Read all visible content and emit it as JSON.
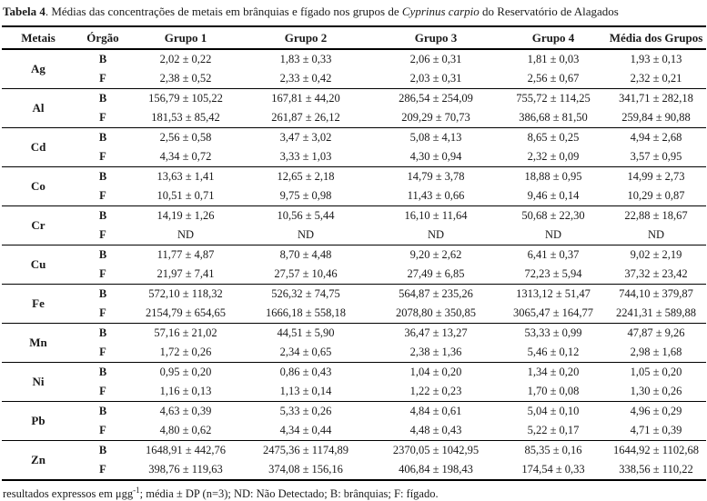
{
  "title": {
    "label": "Tabela 4",
    "text_mid": ". Médias das concentrações de metais em brânquias e fígado nos grupos de ",
    "species": "Cyprinus carpio",
    "text_end": " do Reservatório de Alagados"
  },
  "table": {
    "headers": [
      "Metais",
      "Órgão",
      "Grupo 1",
      "Grupo 2",
      "Grupo 3",
      "Grupo 4",
      "Média dos Grupos"
    ],
    "groups": [
      {
        "metal": "Ag",
        "rows": [
          {
            "organ": "B",
            "values": [
              "2,02 ± 0,22",
              "1,83 ± 0,33",
              "2,06 ± 0,31",
              "1,81 ± 0,03",
              "1,93 ± 0,13"
            ]
          },
          {
            "organ": "F",
            "values": [
              "2,38 ± 0,52",
              "2,33 ± 0,42",
              "2,03 ± 0,31",
              "2,56 ± 0,67",
              "2,32 ± 0,21"
            ]
          }
        ]
      },
      {
        "metal": "Al",
        "rows": [
          {
            "organ": "B",
            "values": [
              "156,79 ± 105,22",
              "167,81 ± 44,20",
              "286,54 ± 254,09",
              "755,72 ± 114,25",
              "341,71 ± 282,18"
            ]
          },
          {
            "organ": "F",
            "values": [
              "181,53 ± 85,42",
              "261,87 ± 26,12",
              "209,29 ± 70,73",
              "386,68 ± 81,50",
              "259,84 ± 90,88"
            ]
          }
        ]
      },
      {
        "metal": "Cd",
        "rows": [
          {
            "organ": "B",
            "values": [
              "2,56 ± 0,58",
              "3,47 ± 3,02",
              "5,08 ± 4,13",
              "8,65 ± 0,25",
              "4,94 ± 2,68"
            ]
          },
          {
            "organ": "F",
            "values": [
              "4,34 ± 0,72",
              "3,33 ± 1,03",
              "4,30 ± 0,94",
              "2,32 ± 0,09",
              "3,57 ± 0,95"
            ]
          }
        ]
      },
      {
        "metal": "Co",
        "rows": [
          {
            "organ": "B",
            "values": [
              "13,63 ± 1,41",
              "12,65 ± 2,18",
              "14,79 ± 3,78",
              "18,88 ± 0,95",
              "14,99 ± 2,73"
            ]
          },
          {
            "organ": "F",
            "values": [
              "10,51 ± 0,71",
              "9,75 ± 0,98",
              "11,43 ± 0,66",
              "9,46 ± 0,14",
              "10,29 ± 0,87"
            ]
          }
        ]
      },
      {
        "metal": "Cr",
        "rows": [
          {
            "organ": "B",
            "values": [
              "14,19 ± 1,26",
              "10,56 ± 5,44",
              "16,10 ± 11,64",
              "50,68 ± 22,30",
              "22,88 ± 18,67"
            ]
          },
          {
            "organ": "F",
            "values": [
              "ND",
              "ND",
              "ND",
              "ND",
              "ND"
            ]
          }
        ]
      },
      {
        "metal": "Cu",
        "rows": [
          {
            "organ": "B",
            "values": [
              "11,77 ± 4,87",
              "8,70 ± 4,48",
              "9,20 ± 2,62",
              "6,41 ± 0,37",
              "9,02 ± 2,19"
            ]
          },
          {
            "organ": "F",
            "values": [
              "21,97 ± 7,41",
              "27,57 ± 10,46",
              "27,49 ± 6,85",
              "72,23 ± 5,94",
              "37,32 ± 23,42"
            ]
          }
        ]
      },
      {
        "metal": "Fe",
        "rows": [
          {
            "organ": "B",
            "values": [
              "572,10 ± 118,32",
              "526,32 ± 74,75",
              "564,87 ± 235,26",
              "1313,12 ± 51,47",
              "744,10 ± 379,87"
            ]
          },
          {
            "organ": "F",
            "values": [
              "2154,79 ± 654,65",
              "1666,18 ± 558,18",
              "2078,80 ± 350,85",
              "3065,47 ± 164,77",
              "2241,31 ± 589,88"
            ]
          }
        ]
      },
      {
        "metal": "Mn",
        "rows": [
          {
            "organ": "B",
            "values": [
              "57,16 ± 21,02",
              "44,51 ± 5,90",
              "36,47 ± 13,27",
              "53,33 ± 0,99",
              "47,87 ± 9,26"
            ]
          },
          {
            "organ": "F",
            "values": [
              "1,72 ± 0,26",
              "2,34 ± 0,65",
              "2,38 ± 1,36",
              "5,46 ± 0,12",
              "2,98 ± 1,68"
            ]
          }
        ]
      },
      {
        "metal": "Ni",
        "rows": [
          {
            "organ": "B",
            "values": [
              "0,95 ± 0,20",
              "0,86 ± 0,43",
              "1,04 ± 0,20",
              "1,34 ± 0,20",
              "1,05 ± 0,20"
            ]
          },
          {
            "organ": "F",
            "values": [
              "1,16 ± 0,13",
              "1,13 ± 0,14",
              "1,22 ± 0,23",
              "1,70 ± 0,08",
              "1,30 ± 0,26"
            ]
          }
        ]
      },
      {
        "metal": "Pb",
        "rows": [
          {
            "organ": "B",
            "values": [
              "4,63 ± 0,39",
              "5,33 ± 0,26",
              "4,84 ± 0,61",
              "5,04 ± 0,10",
              "4,96 ± 0,29"
            ]
          },
          {
            "organ": "F",
            "values": [
              "4,80 ± 0,62",
              "4,34 ± 0,44",
              "4,48 ± 0,43",
              "5,22 ± 0,17",
              "4,71 ± 0,39"
            ]
          }
        ]
      },
      {
        "metal": "Zn",
        "rows": [
          {
            "organ": "B",
            "values": [
              "1648,91 ± 442,76",
              "2475,36 ± 1174,89",
              "2370,05 ± 1042,95",
              "85,35 ± 0,16",
              "1644,92 ± 1102,68"
            ]
          },
          {
            "organ": "F",
            "values": [
              "398,76 ± 119,63",
              "374,08 ± 156,16",
              "406,84 ± 198,43",
              "174,54 ± 0,33",
              "338,56 ± 110,22"
            ]
          }
        ]
      }
    ]
  },
  "footnote": {
    "prefix": "resultados expressos em μgg",
    "superscript": "-1",
    "suffix": "; média ± DP (n=3); ND: Não Detectado; B: brânquias; F: fígado."
  }
}
